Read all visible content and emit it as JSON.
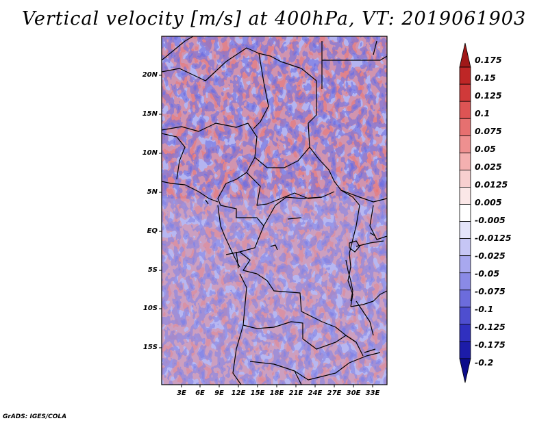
{
  "title": "Vertical velocity [m/s] at 400hPa, VT: 2019061903",
  "map": {
    "lat_labels": [
      "20N",
      "15N",
      "10N",
      "5N",
      "EQ",
      "5S",
      "10S",
      "15S"
    ],
    "lon_labels": [
      "3E",
      "6E",
      "9E",
      "12E",
      "15E",
      "18E",
      "21E",
      "24E",
      "27E",
      "30E",
      "33E"
    ]
  },
  "colorbar": {
    "levels": [
      "0.175",
      "0.15",
      "0.125",
      "0.1",
      "0.075",
      "0.05",
      "0.025",
      "0.0125",
      "0.005",
      "-0.005",
      "-0.0125",
      "-0.025",
      "-0.05",
      "-0.075",
      "-0.1",
      "-0.125",
      "-0.175",
      "-0.2"
    ],
    "colors": [
      "#a01818",
      "#be2626",
      "#d03a3a",
      "#dd5454",
      "#e67070",
      "#ee9090",
      "#f4b0b0",
      "#f8cfcf",
      "#fbe7e7",
      "#ffffff",
      "#e4e4fa",
      "#c6c6f5",
      "#a8a8ef",
      "#8a8ae6",
      "#6c6cdc",
      "#4e4ecf",
      "#3030bf",
      "#1c1ca8",
      "#0c0c8a"
    ]
  },
  "credit": "GrADS: IGES/COLA"
}
